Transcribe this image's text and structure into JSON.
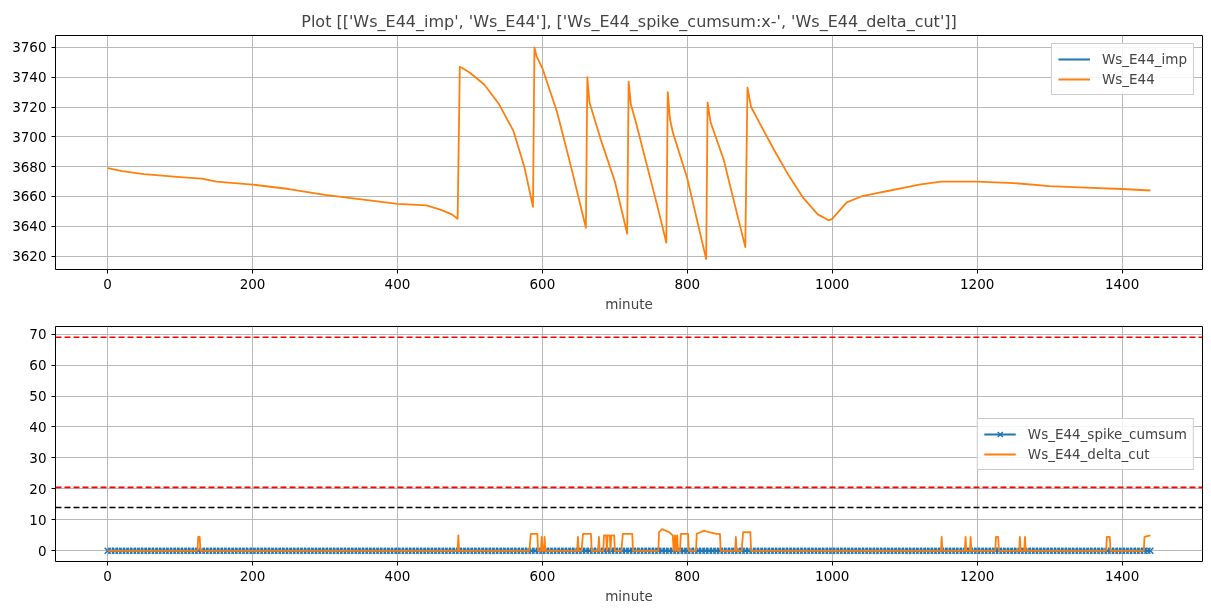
{
  "chart_data": [
    {
      "type": "line",
      "title": "Plot [['Ws_E44_imp', 'Ws_E44'], ['Ws_E44_spike_cumsum:x-', 'Ws_E44_delta_cut']]",
      "xlabel": "minute",
      "xlim": [
        -72,
        1511
      ],
      "xticks": [
        0,
        200,
        400,
        600,
        800,
        1000,
        1200,
        1400
      ],
      "ylim": [
        3611,
        3768
      ],
      "yticks": [
        3620,
        3640,
        3660,
        3680,
        3700,
        3720,
        3740,
        3760
      ],
      "grid": true,
      "legend": "top right",
      "x": [
        0,
        20,
        50,
        100,
        130,
        150,
        200,
        250,
        300,
        350,
        400,
        440,
        460,
        475,
        483,
        486,
        490,
        500,
        520,
        540,
        560,
        575,
        587,
        589,
        592,
        600,
        620,
        640,
        660,
        662,
        665,
        680,
        700,
        717,
        719,
        722,
        730,
        760,
        771,
        773,
        776,
        780,
        800,
        826,
        828,
        832,
        850,
        880,
        883,
        888,
        900,
        920,
        940,
        960,
        980,
        995,
        1000,
        1020,
        1040,
        1060,
        1080,
        1100,
        1120,
        1150,
        1200,
        1250,
        1300,
        1350,
        1400,
        1439
      ],
      "series": [
        {
          "name": "Ws_E44_imp",
          "color": "#1f77b4",
          "values": [
            null,
            null,
            null,
            null,
            null,
            null,
            null,
            null,
            null,
            null,
            null,
            null,
            null,
            null,
            null,
            null,
            null,
            null,
            null,
            null,
            null,
            null,
            null,
            null,
            null,
            null,
            null,
            null,
            null,
            null,
            null,
            null,
            null,
            null,
            null,
            null,
            null,
            null,
            null,
            null,
            null,
            null,
            null,
            null,
            null,
            null,
            null,
            null,
            null,
            null,
            null,
            null,
            null,
            null,
            null,
            null,
            null,
            null,
            null,
            null,
            null,
            null,
            null,
            null,
            null,
            null,
            null,
            null,
            null,
            null
          ]
        },
        {
          "name": "Ws_E44",
          "color": "#ff7f0e",
          "values": [
            3679,
            3677,
            3675,
            3673,
            3672,
            3670,
            3668,
            3665,
            3661,
            3658,
            3655,
            3654,
            3651,
            3648,
            3645,
            3747,
            3746,
            3743,
            3735,
            3722,
            3704,
            3680,
            3653,
            3760,
            3754,
            3746,
            3717,
            3679,
            3639,
            3740,
            3723,
            3699,
            3670,
            3635,
            3737,
            3722,
            3708,
            3651,
            3629,
            3730,
            3712,
            3703,
            3672,
            3618,
            3723,
            3710,
            3685,
            3626,
            3733,
            3720,
            3709,
            3691,
            3674,
            3659,
            3648,
            3644,
            3645,
            3656,
            3660,
            3662,
            3664,
            3666,
            3668,
            3670,
            3670,
            3669,
            3667,
            3666,
            3665,
            3664
          ]
        }
      ]
    },
    {
      "type": "line",
      "xlabel": "minute",
      "xlim": [
        -72,
        1511
      ],
      "xticks": [
        0,
        200,
        400,
        600,
        800,
        1000,
        1200,
        1400
      ],
      "ylim": [
        -3.45,
        72.45
      ],
      "yticks": [
        0,
        10,
        20,
        30,
        40,
        50,
        60,
        70
      ],
      "grid": true,
      "legend": "right",
      "series": [
        {
          "name": "Ws_E44_spike_cumsum",
          "color": "#1f77b4",
          "marker": "cross",
          "x": [
            0,
            5,
            10,
            15,
            20,
            25,
            30,
            35,
            40,
            45,
            50,
            55,
            60,
            65,
            70,
            75,
            80,
            85,
            90,
            95,
            100,
            105,
            110,
            115,
            120,
            125,
            130,
            135,
            140,
            145,
            150,
            155,
            160,
            165,
            170,
            175,
            180,
            185,
            190,
            195,
            200,
            205,
            210,
            215,
            220,
            225,
            230,
            235,
            240,
            245,
            250,
            255,
            260,
            265,
            270,
            275,
            280,
            285,
            290,
            295,
            300,
            305,
            310,
            315,
            320,
            325,
            330,
            335,
            340,
            345,
            350,
            355,
            360,
            365,
            370,
            375,
            380,
            385,
            390,
            395,
            400,
            405,
            410,
            415,
            420,
            425,
            430,
            435,
            440,
            445,
            450,
            455,
            460,
            465,
            470,
            475,
            480,
            485,
            490,
            495,
            500,
            505,
            510,
            515,
            520,
            525,
            530,
            535,
            540,
            545,
            550,
            555,
            560,
            565,
            570,
            575,
            580,
            585,
            590,
            595,
            600,
            605,
            610,
            615,
            620,
            625,
            630,
            635,
            640,
            645,
            650,
            655,
            660,
            665,
            670,
            675,
            680,
            685,
            690,
            695,
            700,
            705,
            710,
            715,
            720,
            725,
            730,
            735,
            740,
            745,
            750,
            755,
            760,
            765,
            770,
            775,
            780,
            785,
            790,
            795,
            800,
            805,
            810,
            815,
            820,
            825,
            830,
            835,
            840,
            845,
            850,
            855,
            860,
            865,
            870,
            875,
            880,
            885,
            890,
            895,
            900,
            905,
            910,
            915,
            920,
            925,
            930,
            935,
            940,
            945,
            950,
            955,
            960,
            965,
            970,
            975,
            980,
            985,
            990,
            995,
            1000,
            1005,
            1010,
            1015,
            1020,
            1025,
            1030,
            1035,
            1040,
            1045,
            1050,
            1055,
            1060,
            1065,
            1070,
            1075,
            1080,
            1085,
            1090,
            1095,
            1100,
            1105,
            1110,
            1115,
            1120,
            1125,
            1130,
            1135,
            1140,
            1145,
            1150,
            1155,
            1160,
            1165,
            1170,
            1175,
            1180,
            1185,
            1190,
            1195,
            1200,
            1205,
            1210,
            1215,
            1220,
            1225,
            1230,
            1235,
            1240,
            1245,
            1250,
            1255,
            1260,
            1265,
            1270,
            1275,
            1280,
            1285,
            1290,
            1295,
            1300,
            1305,
            1310,
            1315,
            1320,
            1325,
            1330,
            1335,
            1340,
            1345,
            1350,
            1355,
            1360,
            1365,
            1370,
            1375,
            1380,
            1385,
            1390,
            1395,
            1400,
            1405,
            1410,
            1415,
            1420,
            1425,
            1430,
            1435,
            1439
          ],
          "values": [
            0,
            0,
            0,
            0,
            0,
            0,
            0,
            0,
            0,
            0,
            0,
            0,
            0,
            0,
            0,
            0,
            0,
            0,
            0,
            0,
            0,
            0,
            0,
            0,
            0,
            0,
            0,
            0,
            0,
            0,
            0,
            0,
            0,
            0,
            0,
            0,
            0,
            0,
            0,
            0,
            0,
            0,
            0,
            0,
            0,
            0,
            0,
            0,
            0,
            0,
            0,
            0,
            0,
            0,
            0,
            0,
            0,
            0,
            0,
            0,
            0,
            0,
            0,
            0,
            0,
            0,
            0,
            0,
            0,
            0,
            0,
            0,
            0,
            0,
            0,
            0,
            0,
            0,
            0,
            0,
            0,
            0,
            0,
            0,
            0,
            0,
            0,
            0,
            0,
            0,
            0,
            0,
            0,
            0,
            0,
            0,
            0,
            0,
            0,
            0,
            0,
            0,
            0,
            0,
            0,
            0,
            0,
            0,
            0,
            0,
            0,
            0,
            0,
            0,
            0,
            0,
            0,
            0,
            0,
            0,
            0,
            0,
            0,
            0,
            0,
            0,
            0,
            0,
            0,
            0,
            0,
            0,
            0,
            0,
            0,
            0,
            0,
            0,
            0,
            0,
            0,
            0,
            0,
            0,
            0,
            0,
            0,
            0,
            0,
            0,
            0,
            0,
            0,
            0,
            0,
            0,
            0,
            0,
            0,
            0,
            0,
            0,
            0,
            0,
            0,
            0,
            0,
            0,
            0,
            0,
            0,
            0,
            0,
            0,
            0,
            0,
            0,
            0,
            0,
            0,
            0,
            0,
            0,
            0,
            0,
            0,
            0,
            0,
            0,
            0,
            0,
            0,
            0,
            0,
            0,
            0,
            0,
            0,
            0,
            0,
            0,
            0,
            0,
            0,
            0,
            0,
            0,
            0,
            0,
            0,
            0,
            0,
            0,
            0,
            0,
            0,
            0,
            0,
            0,
            0,
            0,
            0,
            0,
            0,
            0,
            0,
            0,
            0,
            0,
            0,
            0,
            0,
            0,
            0,
            0,
            0,
            0,
            0,
            0,
            0,
            0,
            0,
            0,
            0,
            0,
            0,
            0,
            0,
            0,
            0,
            0,
            0,
            0,
            0,
            0,
            0,
            0,
            0,
            0,
            0,
            0,
            0,
            0,
            0,
            0,
            0,
            0,
            0,
            0,
            0,
            0,
            0,
            0,
            0,
            0,
            0,
            0,
            0,
            0,
            0,
            0,
            0,
            0,
            0,
            0,
            0,
            0,
            0,
            0
          ]
        },
        {
          "name": "Ws_E44_delta_cut",
          "color": "#ff7f0e",
          "x": [
            0,
            124,
            125,
            127,
            128,
            483,
            484,
            485,
            582,
            584,
            593,
            594,
            598,
            599,
            600,
            602,
            603,
            604,
            648,
            649,
            650,
            654,
            656,
            667,
            668,
            677,
            678,
            679,
            684,
            685,
            688,
            689,
            690,
            693,
            694,
            695,
            699,
            700,
            709,
            711,
            724,
            725,
            760,
            761,
            765,
            770,
            775,
            780,
            781,
            783,
            784,
            786,
            787,
            790,
            791,
            801,
            802,
            812,
            813,
            818,
            823,
            830,
            840,
            845,
            846,
            866,
            867,
            868,
            875,
            877,
            887,
            888,
            1150,
            1151,
            1152,
            1183,
            1184,
            1185,
            1190,
            1191,
            1192,
            1225,
            1226,
            1229,
            1230,
            1258,
            1259,
            1260,
            1265,
            1266,
            1267,
            1378,
            1379,
            1383,
            1384,
            1430,
            1431,
            1439
          ],
          "values": [
            0,
            0,
            4.5,
            4.5,
            0,
            0,
            5,
            0,
            0,
            5.5,
            5.5,
            0,
            0,
            4.5,
            0,
            0,
            4.5,
            0,
            0,
            4.5,
            0,
            0,
            5.5,
            5.5,
            0,
            0,
            4.5,
            0,
            0,
            5,
            5,
            0,
            5,
            5,
            0,
            5,
            5,
            0,
            0,
            5.5,
            5.5,
            0,
            0,
            6,
            7,
            6.5,
            6,
            5,
            0,
            5,
            0,
            5,
            0,
            0,
            5.5,
            5.5,
            0,
            0,
            5.5,
            6,
            6.5,
            6,
            5.5,
            5.5,
            0,
            0,
            4.5,
            0,
            0,
            6,
            6,
            0,
            0,
            4.5,
            0,
            0,
            4.5,
            0,
            0,
            4.5,
            0,
            0,
            4.5,
            4.5,
            0,
            0,
            4.5,
            0,
            0,
            4.5,
            0,
            0,
            4.5,
            4.5,
            0,
            0,
            4.5,
            5
          ]
        }
      ],
      "ref_lines": [
        {
          "axis": "y",
          "value": 69,
          "color": "#ff0000",
          "line_style": "dashed"
        },
        {
          "axis": "y",
          "value": 20.5,
          "color": "#ff0000",
          "line_style": "dashed"
        },
        {
          "axis": "y",
          "value": 14,
          "color": "#000000",
          "line_style": "dashed"
        }
      ]
    }
  ]
}
